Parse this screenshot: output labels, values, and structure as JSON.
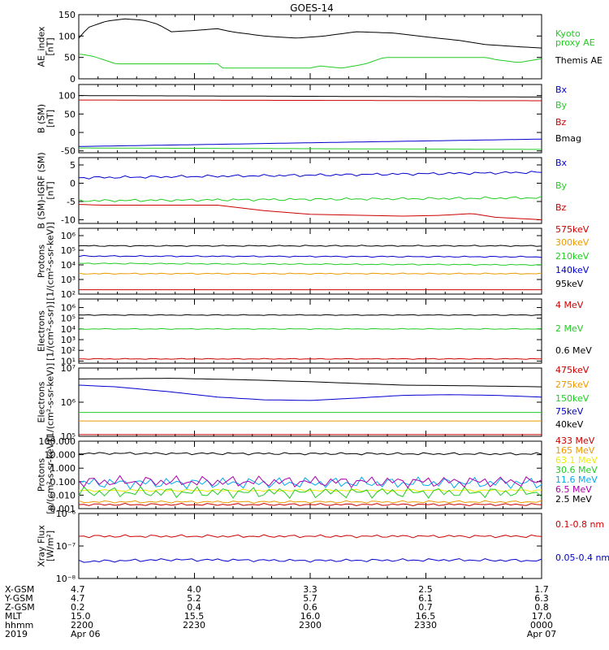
{
  "title": "GOES-14",
  "colors": {
    "black": "#000000",
    "green": "#22cc22",
    "blue": "#0000cc",
    "red": "#cc0000",
    "orange": "#ee9900",
    "yellow": "#eeee00",
    "cyan": "#00aaee",
    "magenta": "#aa00aa"
  },
  "ephemeris": {
    "rows": [
      {
        "label": "X-GSM",
        "values": [
          "4.7",
          "4.0",
          "3.3",
          "2.5",
          "1.7"
        ]
      },
      {
        "label": "Y-GSM",
        "values": [
          "4.7",
          "5.2",
          "5.7",
          "6.1",
          "6.3"
        ]
      },
      {
        "label": "Z-GSM",
        "values": [
          "0.2",
          "0.4",
          "0.6",
          "0.7",
          "0.8"
        ]
      },
      {
        "label": "MLT",
        "values": [
          "15.0",
          "15.5",
          "16.0",
          "16.5",
          "17.0"
        ]
      },
      {
        "label": "hhmm",
        "values": [
          "2200",
          "2230",
          "2300",
          "2330",
          "0000"
        ]
      },
      {
        "label": "2019",
        "values": [
          "Apr 06",
          "",
          "",
          "",
          "Apr 07"
        ]
      }
    ]
  },
  "chart_data": [
    {
      "id": "ae",
      "type": "line",
      "scale": "linear",
      "ylabel": "AE_index\n[nT]",
      "yticks": [
        "0",
        "50",
        "100",
        "150"
      ],
      "ylim": [
        0,
        150
      ],
      "x": [
        "2200",
        "2230",
        "2300",
        "2330",
        "0000"
      ],
      "series": [
        {
          "name": "Kyoto\nproxy AE",
          "color": "green",
          "values": [
            [
              0,
              58
            ],
            [
              0.03,
              53
            ],
            [
              0.08,
              35
            ],
            [
              0.3,
              35
            ],
            [
              0.31,
              25
            ],
            [
              0.5,
              25
            ],
            [
              0.52,
              30
            ],
            [
              0.57,
              25
            ],
            [
              0.62,
              35
            ],
            [
              0.66,
              50
            ],
            [
              0.88,
              50
            ],
            [
              0.9,
              45
            ],
            [
              0.95,
              38
            ],
            [
              1,
              47
            ]
          ]
        },
        {
          "name": "Themis AE",
          "color": "black",
          "values": [
            [
              0,
              95
            ],
            [
              0.02,
              120
            ],
            [
              0.06,
              135
            ],
            [
              0.1,
              140
            ],
            [
              0.14,
              137
            ],
            [
              0.17,
              128
            ],
            [
              0.2,
              110
            ],
            [
              0.25,
              113
            ],
            [
              0.3,
              117
            ],
            [
              0.33,
              110
            ],
            [
              0.4,
              100
            ],
            [
              0.47,
              95
            ],
            [
              0.53,
              100
            ],
            [
              0.6,
              110
            ],
            [
              0.68,
              107
            ],
            [
              0.75,
              98
            ],
            [
              0.82,
              90
            ],
            [
              0.88,
              80
            ],
            [
              0.95,
              75
            ],
            [
              1,
              72
            ]
          ]
        }
      ]
    },
    {
      "id": "b",
      "type": "line",
      "scale": "linear",
      "ylabel": "B (SM)\n[nT]",
      "yticks": [
        "-50",
        "0",
        "50",
        "100"
      ],
      "ylim": [
        -55,
        130
      ],
      "series": [
        {
          "name": "Bx",
          "color": "blue",
          "values": [
            [
              0,
              -38
            ],
            [
              1,
              -18
            ]
          ]
        },
        {
          "name": "By",
          "color": "green",
          "values": [
            [
              0,
              -42
            ],
            [
              1,
              -46
            ]
          ]
        },
        {
          "name": "Bz",
          "color": "red",
          "values": [
            [
              0,
              88
            ],
            [
              1,
              86
            ]
          ]
        },
        {
          "name": "Bmag",
          "color": "black",
          "values": [
            [
              0,
              100
            ],
            [
              1,
              96
            ]
          ]
        }
      ]
    },
    {
      "id": "db",
      "type": "line",
      "scale": "linear",
      "ylabel": "B (SM)-IGRF (SM)\n[nT]",
      "yticks": [
        "-10",
        "-5",
        "0",
        "5"
      ],
      "ylim": [
        -11,
        7
      ],
      "series": [
        {
          "name": "Bx",
          "color": "blue",
          "values": [
            [
              0,
              1.5
            ],
            [
              0.5,
              2.2
            ],
            [
              1,
              3.0
            ]
          ]
        },
        {
          "name": "By",
          "color": "green",
          "values": [
            [
              0,
              -4.8
            ],
            [
              0.5,
              -4.4
            ],
            [
              1,
              -4.0
            ]
          ]
        },
        {
          "name": "Bz",
          "color": "red",
          "values": [
            [
              0,
              -5.8
            ],
            [
              0.05,
              -6.0
            ],
            [
              0.3,
              -6.0
            ],
            [
              0.4,
              -7.5
            ],
            [
              0.5,
              -8.5
            ],
            [
              0.7,
              -9.0
            ],
            [
              0.78,
              -8.8
            ],
            [
              0.85,
              -8.3
            ],
            [
              0.9,
              -9.3
            ],
            [
              1,
              -10
            ]
          ]
        }
      ]
    },
    {
      "id": "protons",
      "type": "line",
      "scale": "log",
      "ylabel": "Protons\n[1/(cm²-s-sr-keV)]",
      "yticks": [
        "10²",
        "10³",
        "10⁴",
        "10⁵",
        "10⁶"
      ],
      "ylim": [
        2,
        6.5
      ],
      "series": [
        {
          "name": "575keV",
          "color": "red",
          "values": [
            [
              0,
              2.3
            ],
            [
              1,
              2.3
            ]
          ]
        },
        {
          "name": "300keV",
          "color": "orange",
          "values": [
            [
              0,
              3.4
            ],
            [
              1,
              3.4
            ]
          ]
        },
        {
          "name": "210keV",
          "color": "green",
          "values": [
            [
              0,
              4.1
            ],
            [
              1,
              4.0
            ]
          ]
        },
        {
          "name": "140keV",
          "color": "blue",
          "values": [
            [
              0,
              4.6
            ],
            [
              1,
              4.55
            ]
          ]
        },
        {
          "name": "95keV",
          "color": "black",
          "values": [
            [
              0,
              5.3
            ],
            [
              1,
              5.3
            ]
          ]
        }
      ]
    },
    {
      "id": "electrons",
      "type": "line",
      "scale": "log",
      "ylabel": "Electrons\n[1/(cm²-s-sr)]",
      "yticks": [
        "10¹",
        "10²",
        "10³",
        "10⁴",
        "10⁵",
        "10⁶"
      ],
      "ylim": [
        0.8,
        6.8
      ],
      "series": [
        {
          "name": "4 MeV",
          "color": "red",
          "values": [
            [
              0,
              1.2
            ],
            [
              1,
              1.2
            ]
          ]
        },
        {
          "name": "2 MeV",
          "color": "green",
          "values": [
            [
              0,
              4.0
            ],
            [
              1,
              4.0
            ]
          ]
        },
        {
          "name": "0.6 MeV",
          "color": "black",
          "values": [
            [
              0,
              5.3
            ],
            [
              1,
              5.3
            ]
          ]
        }
      ]
    },
    {
      "id": "electrons_kev",
      "type": "line",
      "scale": "log",
      "ylabel": "Electrons\n[1/(cm²-s-sr-keV)]",
      "yticks": [
        "10⁵",
        "10⁶",
        "10⁷"
      ],
      "ylim": [
        5,
        7
      ],
      "series": [
        {
          "name": "475keV",
          "color": "red",
          "values": [
            [
              0,
              5.05
            ],
            [
              1,
              5.05
            ]
          ]
        },
        {
          "name": "275keV",
          "color": "orange",
          "values": [
            [
              0,
              5.45
            ],
            [
              1,
              5.45
            ]
          ]
        },
        {
          "name": "150keV",
          "color": "green",
          "values": [
            [
              0,
              5.7
            ],
            [
              1,
              5.7
            ]
          ]
        },
        {
          "name": "75keV",
          "color": "blue",
          "values": [
            [
              0,
              6.5
            ],
            [
              0.08,
              6.45
            ],
            [
              0.2,
              6.3
            ],
            [
              0.3,
              6.15
            ],
            [
              0.4,
              6.07
            ],
            [
              0.5,
              6.05
            ],
            [
              0.6,
              6.12
            ],
            [
              0.7,
              6.2
            ],
            [
              0.8,
              6.22
            ],
            [
              0.9,
              6.2
            ],
            [
              1,
              6.15
            ]
          ]
        },
        {
          "name": "40keV",
          "color": "black",
          "values": [
            [
              0,
              6.68
            ],
            [
              0.2,
              6.7
            ],
            [
              0.35,
              6.66
            ],
            [
              0.5,
              6.6
            ],
            [
              0.6,
              6.55
            ],
            [
              0.7,
              6.5
            ],
            [
              0.85,
              6.48
            ],
            [
              1,
              6.45
            ]
          ]
        }
      ]
    },
    {
      "id": "protons_mev",
      "type": "line",
      "scale": "log",
      "ylabel": "Protons\n[p/(cm²-s-sr-keV)]",
      "yticks": [
        "0.001",
        "0.010",
        "0.100",
        "1.000",
        "10.000",
        "100.000"
      ],
      "ylim": [
        -3,
        2
      ],
      "series": [
        {
          "name": "433 MeV",
          "color": "red",
          "values": [
            [
              0,
              -2.7
            ],
            [
              1,
              -2.7
            ]
          ]
        },
        {
          "name": "165 MeV",
          "color": "orange",
          "values": [
            [
              0,
              -2.5
            ],
            [
              1,
              -2.5
            ]
          ]
        },
        {
          "name": "63.1 MeV",
          "color": "yellow",
          "values": [
            [
              0,
              -1.65
            ],
            [
              1,
              -1.65
            ]
          ]
        },
        {
          "name": "30.6 MeV",
          "color": "green",
          "values": [
            [
              0,
              -1.8
            ],
            [
              1,
              -1.8
            ]
          ]
        },
        {
          "name": "11.6 MeV",
          "color": "cyan",
          "values": [
            [
              0,
              -1.1
            ],
            [
              1,
              -1.1
            ]
          ]
        },
        {
          "name": "6.5 MeV",
          "color": "magenta",
          "values": [
            [
              0,
              -1.0
            ],
            [
              1,
              -1.0
            ]
          ]
        },
        {
          "name": "2.5 MeV",
          "color": "black",
          "values": [
            [
              0,
              1.1
            ],
            [
              1,
              1.05
            ]
          ]
        }
      ]
    },
    {
      "id": "xray",
      "type": "line",
      "scale": "log",
      "ylabel": "Xray Flux\n[W/m²]",
      "yticks": [
        "10⁻⁸",
        "10⁻⁷",
        "10⁻⁶"
      ],
      "ylim": [
        -8,
        -6
      ],
      "series": [
        {
          "name": "0.1-0.8 nm",
          "color": "red",
          "values": [
            [
              0,
              -6.7
            ],
            [
              1,
              -6.7
            ]
          ]
        },
        {
          "name": "0.05-0.4 nm",
          "color": "blue",
          "values": [
            [
              0,
              -7.48
            ],
            [
              0.2,
              -7.42
            ],
            [
              0.5,
              -7.45
            ],
            [
              0.8,
              -7.43
            ],
            [
              1,
              -7.45
            ]
          ]
        }
      ]
    }
  ]
}
